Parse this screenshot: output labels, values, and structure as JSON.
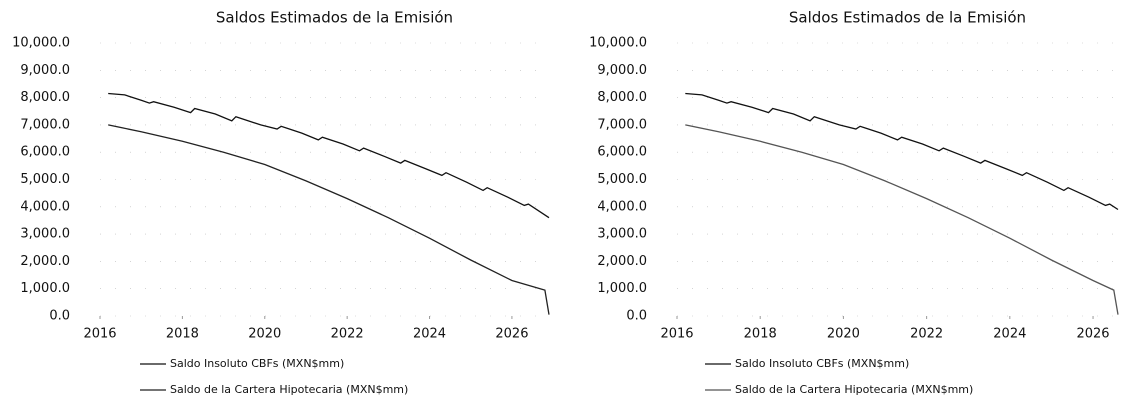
{
  "chart_data": [
    {
      "type": "line",
      "title": "Saldos Estimados de la Emisión",
      "xlim": [
        2016,
        2026.9
      ],
      "xticks": [
        2016,
        2018,
        2020,
        2022,
        2024,
        2026
      ],
      "ylim": [
        0,
        10000
      ],
      "yticks": [
        {
          "value": 0,
          "label": "0.0"
        },
        {
          "value": 1000,
          "label": "1,000.0"
        },
        {
          "value": 2000,
          "label": "2,000.0"
        },
        {
          "value": 3000,
          "label": "3,000.0"
        },
        {
          "value": 4000,
          "label": "4,000.0"
        },
        {
          "value": 5000,
          "label": "5,000.0"
        },
        {
          "value": 6000,
          "label": "6,000.0"
        },
        {
          "value": 7000,
          "label": "7,000.0"
        },
        {
          "value": 8000,
          "label": "8,000.0"
        },
        {
          "value": 9000,
          "label": "9,000.0"
        },
        {
          "value": 10000,
          "label": "10,000.0"
        }
      ],
      "grid": true,
      "series": [
        {
          "name": "Saldo Insoluto CBFs (MXN$mm)",
          "color": "#111111",
          "x": [
            2016.2,
            2016.6,
            2017.0,
            2017.2,
            2017.3,
            2017.8,
            2018.2,
            2018.3,
            2018.8,
            2019.2,
            2019.3,
            2019.9,
            2020.3,
            2020.4,
            2020.9,
            2021.3,
            2021.4,
            2021.9,
            2022.3,
            2022.4,
            2022.9,
            2023.3,
            2023.4,
            2023.9,
            2024.3,
            2024.4,
            2024.9,
            2025.3,
            2025.4,
            2025.9,
            2026.3,
            2026.4,
            2026.9
          ],
          "values": [
            8150,
            8100,
            7900,
            7800,
            7850,
            7650,
            7450,
            7600,
            7400,
            7150,
            7300,
            7000,
            6850,
            6950,
            6700,
            6450,
            6550,
            6300,
            6050,
            6150,
            5850,
            5600,
            5700,
            5400,
            5150,
            5250,
            4900,
            4600,
            4700,
            4350,
            4050,
            4100,
            3600
          ]
        },
        {
          "name": "Saldo de la Cartera Hipotecaria (MXN$mm)",
          "color": "#222222",
          "x": [
            2016.2,
            2017,
            2018,
            2019,
            2020,
            2021,
            2022,
            2023,
            2024,
            2025,
            2026,
            2026.8,
            2026.9
          ],
          "values": [
            7000,
            6750,
            6400,
            6000,
            5550,
            4950,
            4300,
            3600,
            2850,
            2050,
            1300,
            950,
            50
          ]
        }
      ]
    },
    {
      "type": "line",
      "title": "Saldos Estimados de la Emisión",
      "xlim": [
        2016,
        2026.6
      ],
      "xticks": [
        2016,
        2018,
        2020,
        2022,
        2024,
        2026
      ],
      "ylim": [
        0,
        10000
      ],
      "yticks": [
        {
          "value": 0,
          "label": "0.0"
        },
        {
          "value": 1000,
          "label": "1,000.0"
        },
        {
          "value": 2000,
          "label": "2,000.0"
        },
        {
          "value": 3000,
          "label": "3,000.0"
        },
        {
          "value": 4000,
          "label": "4,000.0"
        },
        {
          "value": 5000,
          "label": "5,000.0"
        },
        {
          "value": 6000,
          "label": "6,000.0"
        },
        {
          "value": 7000,
          "label": "7,000.0"
        },
        {
          "value": 8000,
          "label": "8,000.0"
        },
        {
          "value": 9000,
          "label": "9,000.0"
        },
        {
          "value": 10000,
          "label": "10,000.0"
        }
      ],
      "grid": true,
      "series": [
        {
          "name": "Saldo Insoluto CBFs (MXN$mm)",
          "color": "#111111",
          "x": [
            2016.2,
            2016.6,
            2017.0,
            2017.2,
            2017.3,
            2017.8,
            2018.2,
            2018.3,
            2018.8,
            2019.2,
            2019.3,
            2019.9,
            2020.3,
            2020.4,
            2020.9,
            2021.3,
            2021.4,
            2021.9,
            2022.3,
            2022.4,
            2022.9,
            2023.3,
            2023.4,
            2023.9,
            2024.3,
            2024.4,
            2024.9,
            2025.3,
            2025.4,
            2025.9,
            2026.3,
            2026.4,
            2026.6
          ],
          "values": [
            8150,
            8100,
            7900,
            7800,
            7850,
            7650,
            7450,
            7600,
            7400,
            7150,
            7300,
            7000,
            6850,
            6950,
            6700,
            6450,
            6550,
            6300,
            6050,
            6150,
            5850,
            5600,
            5700,
            5400,
            5150,
            5250,
            4900,
            4600,
            4700,
            4350,
            4050,
            4100,
            3900
          ]
        },
        {
          "name": "Saldo de la Cartera Hipotecaria (MXN$mm)",
          "color": "#555555",
          "x": [
            2016.2,
            2017,
            2018,
            2019,
            2020,
            2021,
            2022,
            2023,
            2024,
            2025,
            2026,
            2026.5,
            2026.6
          ],
          "values": [
            7000,
            6750,
            6400,
            6000,
            5550,
            4950,
            4300,
            3600,
            2850,
            2050,
            1300,
            950,
            50
          ]
        }
      ]
    }
  ]
}
